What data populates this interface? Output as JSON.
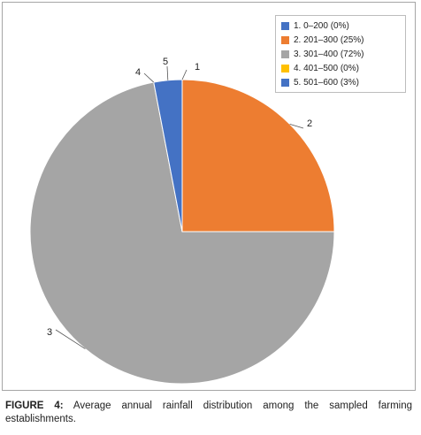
{
  "chart_data": {
    "type": "pie",
    "start_angle_deg": 0,
    "direction": "clockwise",
    "slices": [
      {
        "label": "1",
        "legend": "1. 0–200 (0%)",
        "value": 0,
        "color": "#4472c4"
      },
      {
        "label": "2",
        "legend": "2. 201–300 (25%)",
        "value": 25,
        "color": "#ed7d31"
      },
      {
        "label": "3",
        "legend": "3. 301–400 (72%)",
        "value": 72,
        "color": "#a5a5a5"
      },
      {
        "label": "4",
        "legend": "4. 401–500 (0%)",
        "value": 0,
        "color": "#ffc000"
      },
      {
        "label": "5",
        "legend": "5. 501–600 (3%)",
        "value": 3,
        "color": "#4472c4"
      }
    ],
    "legend_position": "top-right"
  },
  "caption": {
    "prefix": "FIGURE 4:",
    "text": " Average annual rainfall distribution among the sampled farming establishments."
  }
}
